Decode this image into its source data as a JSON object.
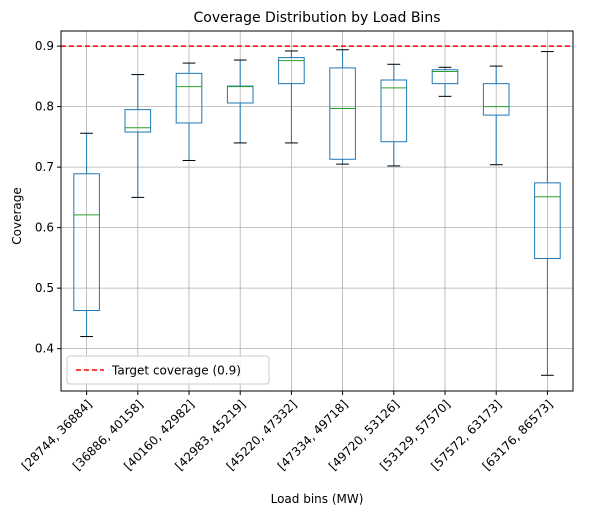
{
  "chart_data": {
    "type": "box",
    "title": "Coverage Distribution by Load Bins",
    "xlabel": "Load bins (MW)",
    "ylabel": "Coverage",
    "ylim": [
      0.33,
      0.925
    ],
    "yticks": [
      0.4,
      0.5,
      0.6,
      0.7,
      0.8,
      0.9
    ],
    "grid": true,
    "legend_position": "lower-left",
    "target": {
      "value": 0.9,
      "label": "Target coverage (0.9)",
      "color": "#ff0000"
    },
    "colors": {
      "box": "#1f77b4",
      "median": "#2ca02c",
      "whisker": "#1f77b4",
      "cap": "#000000",
      "grid": "#b0b0b0"
    },
    "categories": [
      "[28744, 36884]",
      "[36886, 40158]",
      "[40160, 42982]",
      "[42983, 45219]",
      "[45220, 47332]",
      "[47334, 49718]",
      "[49720, 53126]",
      "[53129, 57570]",
      "[57572, 63173]",
      "[63176, 86573]"
    ],
    "boxes": [
      {
        "whislo": 0.42,
        "q1": 0.463,
        "median": 0.621,
        "q3": 0.689,
        "whishi": 0.756
      },
      {
        "whislo": 0.65,
        "q1": 0.758,
        "median": 0.765,
        "q3": 0.795,
        "whishi": 0.853
      },
      {
        "whislo": 0.711,
        "q1": 0.773,
        "median": 0.833,
        "q3": 0.855,
        "whishi": 0.872
      },
      {
        "whislo": 0.74,
        "q1": 0.806,
        "median": 0.833,
        "q3": 0.834,
        "whishi": 0.877
      },
      {
        "whislo": 0.74,
        "q1": 0.838,
        "median": 0.876,
        "q3": 0.881,
        "whishi": 0.892
      },
      {
        "whislo": 0.705,
        "q1": 0.713,
        "median": 0.797,
        "q3": 0.864,
        "whishi": 0.894
      },
      {
        "whislo": 0.702,
        "q1": 0.742,
        "median": 0.831,
        "q3": 0.844,
        "whishi": 0.87
      },
      {
        "whislo": 0.817,
        "q1": 0.838,
        "median": 0.858,
        "q3": 0.861,
        "whishi": 0.865
      },
      {
        "whislo": 0.704,
        "q1": 0.786,
        "median": 0.8,
        "q3": 0.838,
        "whishi": 0.867
      },
      {
        "whislo": 0.356,
        "q1": 0.549,
        "median": 0.651,
        "q3": 0.674,
        "whishi": 0.891
      }
    ]
  }
}
